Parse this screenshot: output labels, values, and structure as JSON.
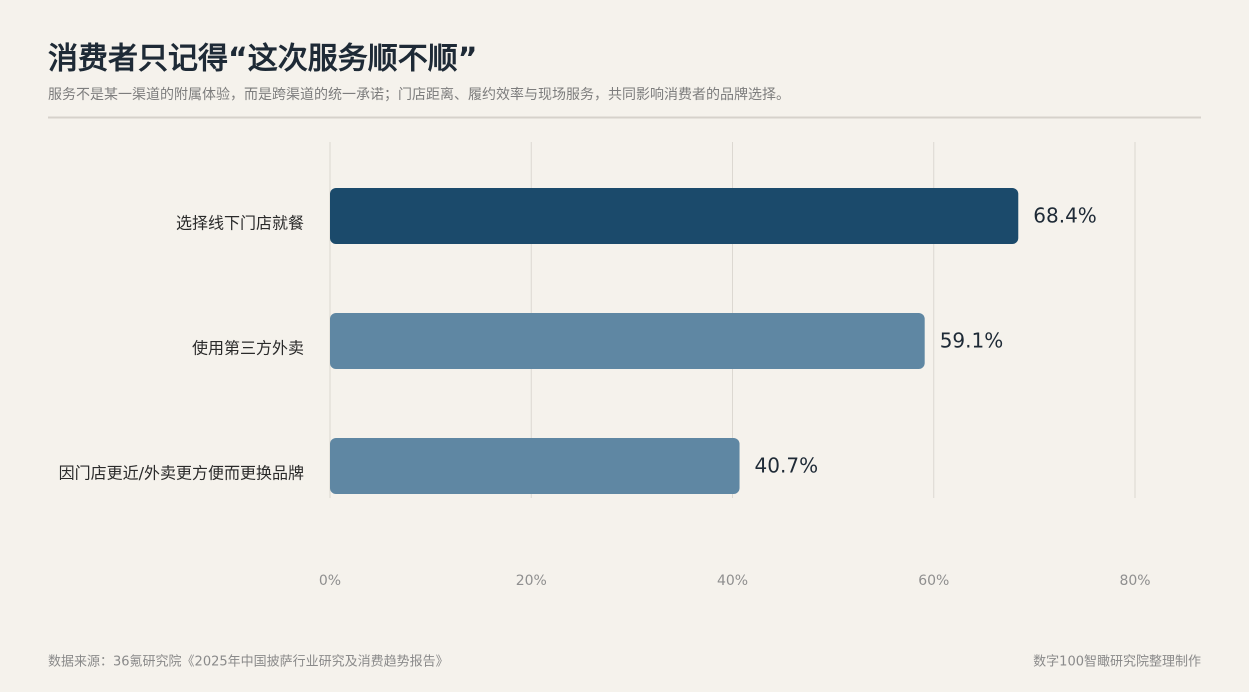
{
  "chart_data": {
    "type": "bar",
    "title": "消费者只记得“这次服务顺不顺”",
    "subtitle": "服务不是某一渠道的附属体验，而是跨渠道的统一承诺；门店距离、履约效率与现场服务，共同影响消费者的品牌选择。",
    "categories": [
      "选择线下门店就餐",
      "使用第三方外卖",
      "因门店更近/外卖更方便而更换品牌"
    ],
    "values": [
      68.4,
      59.1,
      40.7
    ],
    "value_labels": [
      "68.4%",
      "59.1%",
      "40.7%"
    ],
    "colors": [
      "#1b4a6b",
      "#5f87a3",
      "#5f87a3"
    ],
    "xlim": [
      0,
      80
    ],
    "xticks": [
      {
        "value": 0,
        "label": "0%"
      },
      {
        "value": 20,
        "label": "20%"
      },
      {
        "value": 40,
        "label": "40%"
      },
      {
        "value": 60,
        "label": "60%"
      },
      {
        "value": 80,
        "label": "80%"
      }
    ],
    "grid": true,
    "source": "数据来源：36氪研究院《2025年中国披萨行业研究及消费趋势报告》",
    "credit": "数字100智瞰研究院整理制作"
  }
}
